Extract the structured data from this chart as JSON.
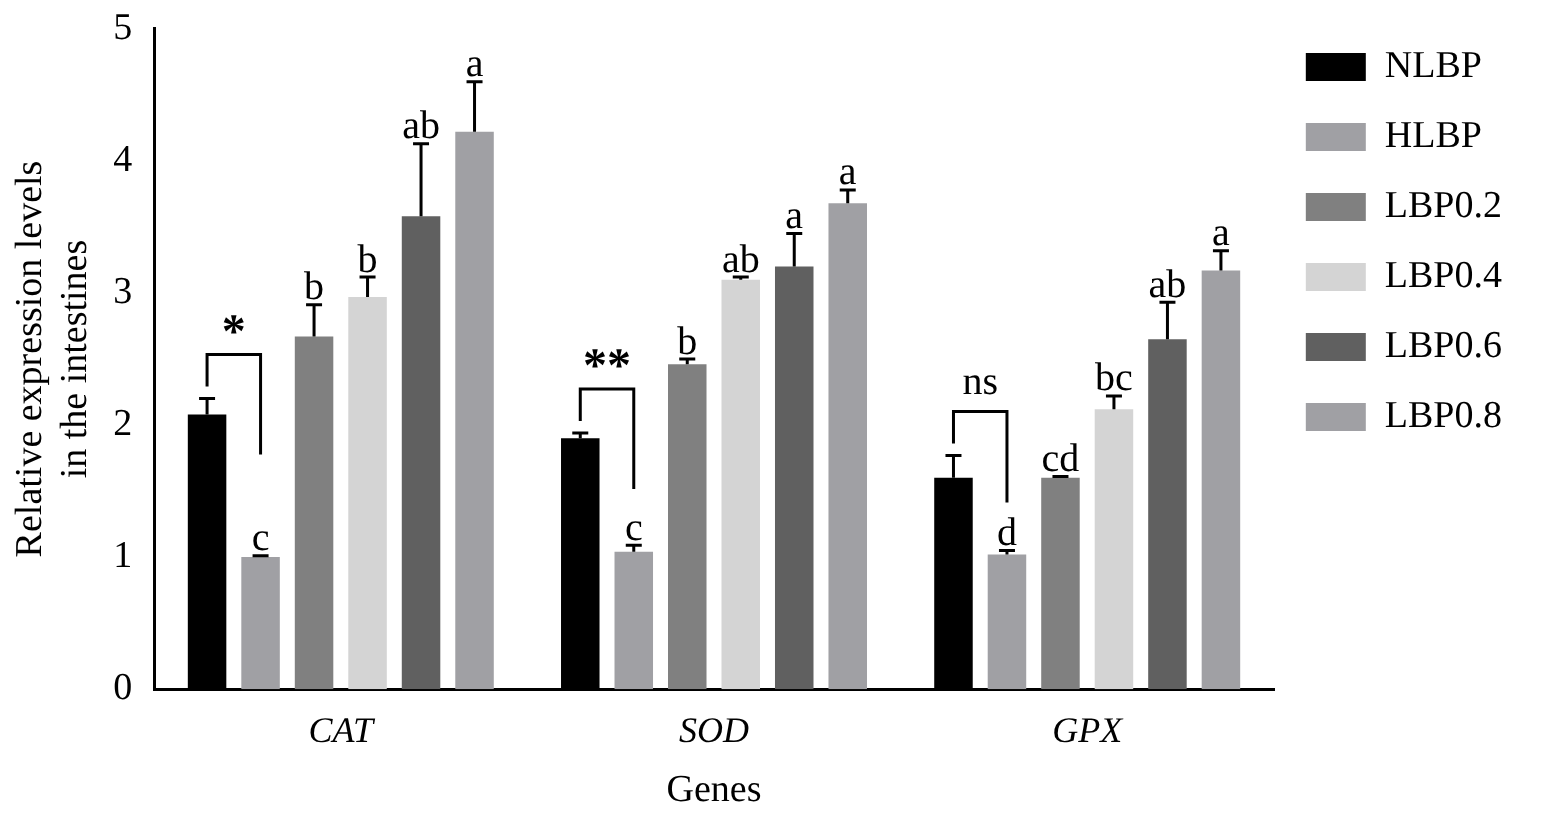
{
  "chart_data": {
    "type": "bar",
    "xlabel": "Genes",
    "ylabel": "Relative expression levels\nin the intestines",
    "categories": [
      "CAT",
      "SOD",
      "GPX"
    ],
    "series": [
      {
        "name": "NLBP",
        "color": "#000000",
        "values": [
          2.08,
          1.9,
          1.6
        ],
        "errors": [
          0.12,
          0.04,
          0.17
        ],
        "value_labels": [
          null,
          null,
          null
        ]
      },
      {
        "name": "HLBP",
        "color": "#a0a0a4",
        "values": [
          1.0,
          1.04,
          1.02
        ],
        "errors": [
          0.01,
          0.05,
          0.03
        ],
        "value_labels": [
          "c",
          "c",
          "d"
        ]
      },
      {
        "name": "LBP0.2",
        "color": "#808080",
        "values": [
          2.67,
          2.46,
          1.6
        ],
        "errors": [
          0.24,
          0.04,
          0.01
        ],
        "value_labels": [
          "b",
          "b",
          "cd"
        ]
      },
      {
        "name": "LBP0.4",
        "color": "#d4d4d4",
        "values": [
          2.97,
          3.1,
          2.12
        ],
        "errors": [
          0.15,
          0.02,
          0.1
        ],
        "value_labels": [
          "b",
          "ab",
          "bc"
        ]
      },
      {
        "name": "LBP0.6",
        "color": "#606060",
        "values": [
          3.58,
          3.2,
          2.65
        ],
        "errors": [
          0.55,
          0.25,
          0.28
        ],
        "value_labels": [
          "ab",
          "a",
          "ab"
        ]
      },
      {
        "name": "LBP0.8",
        "color": "#a0a0a4",
        "values": [
          4.22,
          3.68,
          3.17
        ],
        "errors": [
          0.38,
          0.1,
          0.15
        ],
        "value_labels": [
          "a",
          "a",
          "a"
        ]
      }
    ],
    "annotations": [
      "*",
      "**",
      "ns"
    ],
    "ylim": [
      0,
      5
    ],
    "yticks": [
      0,
      1,
      2,
      3,
      4,
      5
    ],
    "grid": false,
    "legend": "right"
  }
}
